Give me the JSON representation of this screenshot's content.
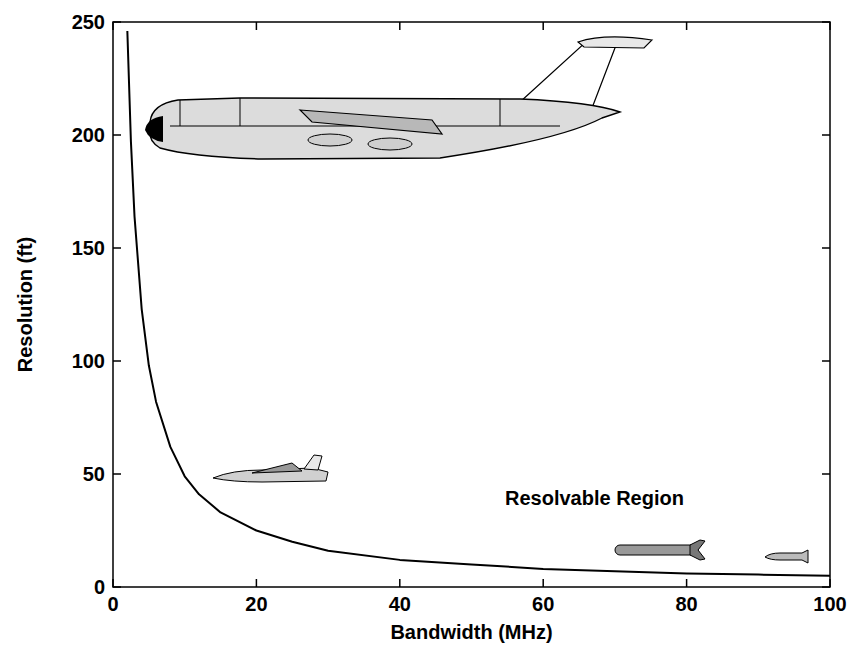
{
  "chart_data": {
    "type": "line",
    "x_label": "Bandwidth (MHz)",
    "y_label": "Resolution (ft)",
    "annotations": [
      "Resolvable Region"
    ],
    "x": [
      2,
      2.5,
      3,
      4,
      5,
      6,
      8,
      10,
      12,
      15,
      20,
      25,
      30,
      40,
      50,
      60,
      70,
      80,
      90,
      100
    ],
    "values": [
      246,
      197,
      164,
      123,
      98,
      82,
      62,
      49,
      41,
      33,
      25,
      20,
      16,
      12,
      10,
      8,
      7,
      6,
      5.5,
      5
    ],
    "color": "#000000",
    "xlim": [
      0,
      100
    ],
    "ylim": [
      0,
      250
    ],
    "xticks": [
      0,
      20,
      40,
      60,
      80,
      100
    ],
    "yticks": [
      0,
      50,
      100,
      150,
      200,
      250
    ],
    "grid": false
  }
}
